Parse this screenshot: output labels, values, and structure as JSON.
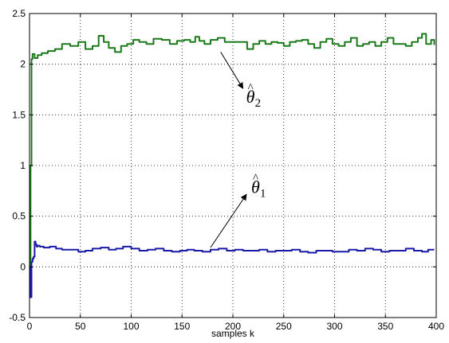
{
  "chart_data": {
    "type": "line",
    "title": "",
    "xlabel": "samples k",
    "ylabel": "",
    "xlim": [
      0,
      400
    ],
    "ylim": [
      -0.5,
      2.5
    ],
    "xticks": [
      0,
      50,
      100,
      150,
      200,
      250,
      300,
      350,
      400
    ],
    "xtick_labels": [
      "0",
      "50",
      "100",
      "150",
      "200",
      "250",
      "300",
      "350",
      "400"
    ],
    "yticks": [
      -0.5,
      0,
      0.5,
      1,
      1.5,
      2,
      2.5
    ],
    "ytick_labels": [
      "-0.5",
      "0",
      "0.5",
      "1",
      "1.5",
      "2",
      "2.5"
    ],
    "grid": true,
    "series": [
      {
        "color": "#1a7a1a",
        "x": [
          0,
          1,
          2,
          3,
          5,
          8,
          12,
          18,
          25,
          32,
          40,
          48,
          55,
          62,
          68,
          73,
          78,
          84,
          90,
          96,
          102,
          108,
          115,
          122,
          130,
          138,
          145,
          152,
          158,
          163,
          167,
          172,
          178,
          185,
          192,
          200,
          208,
          214,
          220,
          226,
          232,
          238,
          244,
          250,
          256,
          262,
          268,
          274,
          280,
          286,
          292,
          298,
          304,
          310,
          316,
          322,
          328,
          334,
          340,
          346,
          352,
          358,
          364,
          370,
          376,
          382,
          386,
          390,
          395,
          398
        ],
        "values": [
          0.0,
          1.0,
          2.05,
          2.1,
          2.06,
          2.09,
          2.11,
          2.13,
          2.15,
          2.2,
          2.18,
          2.22,
          2.15,
          2.18,
          2.28,
          2.22,
          2.16,
          2.12,
          2.18,
          2.2,
          2.24,
          2.22,
          2.2,
          2.25,
          2.24,
          2.2,
          2.23,
          2.24,
          2.22,
          2.27,
          2.23,
          2.2,
          2.24,
          2.26,
          2.22,
          2.22,
          2.22,
          2.15,
          2.2,
          2.23,
          2.2,
          2.22,
          2.21,
          2.18,
          2.22,
          2.23,
          2.24,
          2.2,
          2.16,
          2.22,
          2.25,
          2.2,
          2.18,
          2.22,
          2.26,
          2.18,
          2.2,
          2.22,
          2.18,
          2.22,
          2.26,
          2.2,
          2.2,
          2.18,
          2.22,
          2.26,
          2.3,
          2.2,
          2.24,
          2.19
        ]
      },
      {
        "color": "#1a1aa8",
        "x": [
          0,
          1,
          2,
          3,
          4,
          5,
          6,
          7,
          8,
          10,
          14,
          20,
          26,
          32,
          40,
          48,
          55,
          62,
          70,
          78,
          85,
          92,
          100,
          108,
          116,
          124,
          132,
          140,
          148,
          155,
          162,
          170,
          178,
          186,
          194,
          202,
          210,
          218,
          226,
          234,
          242,
          250,
          258,
          266,
          274,
          282,
          290,
          298,
          306,
          314,
          322,
          330,
          338,
          346,
          354,
          362,
          370,
          378,
          386,
          392,
          398
        ],
        "values": [
          0.0,
          -0.3,
          0.05,
          0.08,
          0.1,
          0.25,
          0.22,
          0.2,
          0.21,
          0.2,
          0.19,
          0.2,
          0.18,
          0.17,
          0.17,
          0.15,
          0.16,
          0.18,
          0.19,
          0.17,
          0.18,
          0.2,
          0.18,
          0.16,
          0.17,
          0.18,
          0.16,
          0.15,
          0.16,
          0.17,
          0.16,
          0.15,
          0.17,
          0.18,
          0.16,
          0.17,
          0.16,
          0.16,
          0.17,
          0.15,
          0.16,
          0.16,
          0.17,
          0.15,
          0.14,
          0.16,
          0.16,
          0.15,
          0.15,
          0.17,
          0.16,
          0.18,
          0.17,
          0.15,
          0.16,
          0.16,
          0.18,
          0.16,
          0.15,
          0.17,
          0.17
        ]
      }
    ],
    "annotations": [
      {
        "label": "θ",
        "hat": "^",
        "subscript": "2",
        "x": 213,
        "y": 1.62,
        "arrow_to": [
          188,
          2.12
        ]
      },
      {
        "label": "θ",
        "hat": "^",
        "subscript": "1",
        "x": 218,
        "y": 0.73,
        "arrow_to": [
          178,
          0.19
        ]
      }
    ]
  }
}
